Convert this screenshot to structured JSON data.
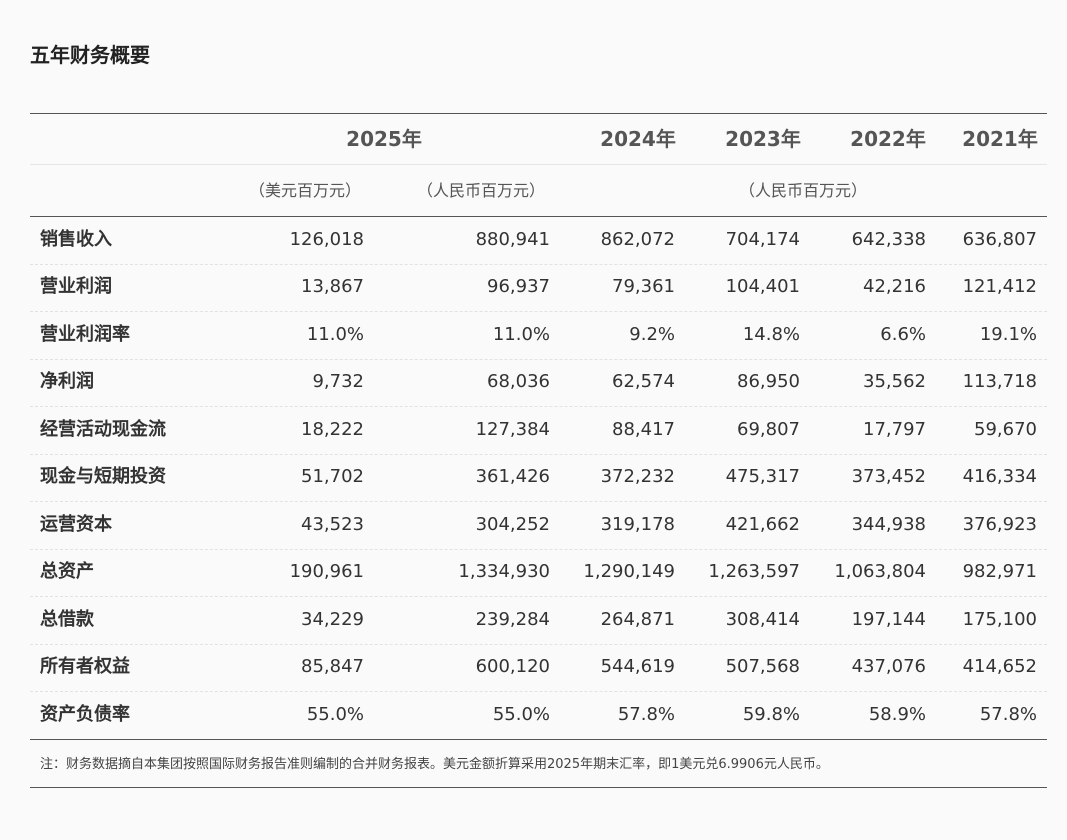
{
  "title": "五年财务概要",
  "table": {
    "header": [
      "2025年",
      "2024年",
      "2023年",
      "2022年",
      "2021年"
    ],
    "units": [
      "（美元百万元）",
      "（人民币百万元）",
      "（人民币百万元）"
    ],
    "rows": [
      [
        "销售收入",
        "126,018",
        "880,941",
        "862,072",
        "704,174",
        "642,338",
        "636,807"
      ],
      [
        "营业利润",
        "13,867",
        "96,937",
        "79,361",
        "104,401",
        "42,216",
        "121,412"
      ],
      [
        "营业利润率",
        "11.0%",
        "11.0%",
        "9.2%",
        "14.8%",
        "6.6%",
        "19.1%"
      ],
      [
        "净利润",
        "9,732",
        "68,036",
        "62,574",
        "86,950",
        "35,562",
        "113,718"
      ],
      [
        "经营活动现金流",
        "18,222",
        "127,384",
        "88,417",
        "69,807",
        "17,797",
        "59,670"
      ],
      [
        "现金与短期投资",
        "51,702",
        "361,426",
        "372,232",
        "475,317",
        "373,452",
        "416,334"
      ],
      [
        "运营资本",
        "43,523",
        "304,252",
        "319,178",
        "421,662",
        "344,938",
        "376,923"
      ],
      [
        "总资产",
        "190,961",
        "1,334,930",
        "1,290,149",
        "1,263,597",
        "1,063,804",
        "982,971"
      ],
      [
        "总借款",
        "34,229",
        "239,284",
        "264,871",
        "308,414",
        "197,144",
        "175,100"
      ],
      [
        "所有者权益",
        "85,847",
        "600,120",
        "544,619",
        "507,568",
        "437,076",
        "414,652"
      ],
      [
        "资产负债率",
        "55.0%",
        "55.0%",
        "57.8%",
        "59.8%",
        "58.9%",
        "57.8%"
      ]
    ]
  },
  "note": "注：财务数据摘自本集团按照国际财务报告准则编制的合并财务报表。美元金额折算采用2025年期末汇率，即1美元兑6.9906元人民币。"
}
